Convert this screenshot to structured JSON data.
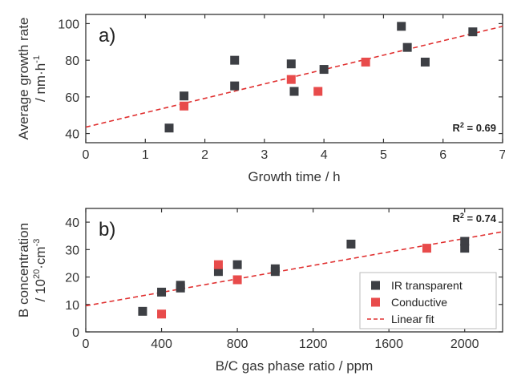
{
  "colors": {
    "ir_transparent": "#3d3f44",
    "conductive": "#e84b4b",
    "fit": "#e03030",
    "axis": "#333333"
  },
  "chart_data": [
    {
      "type": "scatter",
      "panel_label": "a)",
      "xlabel": "Growth time / h",
      "ylabel_line1": "Average growth rate",
      "ylabel_line2": "/ nm·h",
      "ylabel_line2_sup": "-1",
      "xlim": [
        0,
        7
      ],
      "ylim": [
        35,
        105
      ],
      "xticks": [
        0,
        1,
        2,
        3,
        4,
        5,
        6,
        7
      ],
      "yticks": [
        40,
        60,
        80,
        100
      ],
      "r2_label": "R",
      "r2_sup": "2",
      "r2_value": " = 0.69",
      "series": [
        {
          "name": "IR transparent",
          "color": "#3d3f44",
          "points": [
            [
              1.4,
              43
            ],
            [
              1.65,
              60.5
            ],
            [
              2.5,
              80
            ],
            [
              2.5,
              66
            ],
            [
              3.45,
              78
            ],
            [
              3.5,
              63
            ],
            [
              4.0,
              75
            ],
            [
              5.3,
              98.5
            ],
            [
              5.4,
              87
            ],
            [
              5.7,
              79
            ],
            [
              6.5,
              95.5
            ]
          ]
        },
        {
          "name": "Conductive",
          "color": "#e84b4b",
          "points": [
            [
              1.65,
              55
            ],
            [
              3.45,
              69.5
            ],
            [
              3.9,
              63
            ],
            [
              4.7,
              79
            ]
          ]
        }
      ],
      "fit": {
        "name": "Linear fit",
        "x": [
          0,
          7
        ],
        "y": [
          43.5,
          98.5
        ]
      }
    },
    {
      "type": "scatter",
      "panel_label": "b)",
      "xlabel": "B/C gas phase ratio / ppm",
      "ylabel_line1": "B concentration",
      "ylabel_line2": "/ 10",
      "ylabel_line2_sup": "20",
      "ylabel_line2_mid": "·cm",
      "ylabel_line2_sup2": "-3",
      "xlim": [
        0,
        2200
      ],
      "ylim": [
        0,
        45
      ],
      "xticks": [
        0,
        400,
        800,
        1200,
        1600,
        2000
      ],
      "yticks": [
        0,
        10,
        20,
        30,
        40
      ],
      "r2_label": "R",
      "r2_sup": "2",
      "r2_value": " = 0.74",
      "series": [
        {
          "name": "IR transparent",
          "color": "#3d3f44",
          "points": [
            [
              300,
              7.5
            ],
            [
              400,
              14.5
            ],
            [
              500,
              17
            ],
            [
              500,
              16
            ],
            [
              700,
              22
            ],
            [
              800,
              24.5
            ],
            [
              1000,
              23
            ],
            [
              1000,
              22
            ],
            [
              1400,
              32
            ],
            [
              2000,
              33
            ],
            [
              2000,
              30.5
            ]
          ]
        },
        {
          "name": "Conductive",
          "color": "#e84b4b",
          "points": [
            [
              400,
              6.5
            ],
            [
              700,
              24.5
            ],
            [
              800,
              19
            ],
            [
              1800,
              30.5
            ]
          ]
        }
      ],
      "fit": {
        "name": "Linear fit",
        "x": [
          0,
          2200
        ],
        "y": [
          9.5,
          36.5
        ]
      }
    }
  ],
  "legend": {
    "placement": "bottom-right",
    "items": [
      {
        "label": "IR transparent",
        "kind": "square",
        "color": "#3d3f44"
      },
      {
        "label": "Conductive",
        "kind": "square",
        "color": "#e84b4b"
      },
      {
        "label": "Linear fit",
        "kind": "dashed-line",
        "color": "#e03030"
      }
    ]
  }
}
